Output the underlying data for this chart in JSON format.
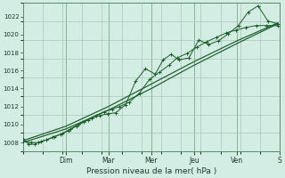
{
  "xlabel": "Pression niveau de la mer( hPa )",
  "background_color": "#d4ede4",
  "plot_bg_color": "#d4ede4",
  "grid_color": "#a8c8b8",
  "line_color": "#1a5c28",
  "ylim": [
    1007.0,
    1023.5
  ],
  "yticks": [
    1008,
    1010,
    1012,
    1014,
    1016,
    1018,
    1020,
    1022
  ],
  "xlim": [
    0.0,
    13.0
  ],
  "day_labels": [
    "Dim",
    "Mar",
    "Mer",
    "Jeu",
    "Ven",
    "S"
  ],
  "day_positions": [
    2.17,
    4.33,
    6.5,
    8.67,
    10.83,
    13.0
  ],
  "num_xcells": 13,
  "num_ycells": 8,
  "line1_x": [
    0.0,
    0.3,
    0.6,
    0.9,
    1.2,
    1.5,
    1.9,
    2.3,
    2.7,
    3.1,
    3.5,
    3.9,
    4.3,
    4.7,
    5.2,
    5.7,
    6.2,
    6.7,
    7.1,
    7.5,
    7.9,
    8.4,
    8.9,
    9.4,
    9.9,
    10.4,
    10.9,
    11.4,
    11.9,
    12.4,
    12.9
  ],
  "line1_y": [
    1008.4,
    1007.8,
    1007.8,
    1008.1,
    1008.3,
    1008.6,
    1008.9,
    1009.3,
    1009.8,
    1010.3,
    1010.7,
    1011.0,
    1011.2,
    1011.3,
    1012.2,
    1014.8,
    1016.2,
    1015.6,
    1017.2,
    1017.8,
    1017.2,
    1017.4,
    1019.4,
    1018.9,
    1019.3,
    1020.1,
    1021.0,
    1022.5,
    1023.2,
    1021.5,
    1021.2
  ],
  "line2_x": [
    0.0,
    0.4,
    0.8,
    1.2,
    1.6,
    2.0,
    2.4,
    2.8,
    3.3,
    3.7,
    4.1,
    4.5,
    4.9,
    5.4,
    5.9,
    6.4,
    6.9,
    7.4,
    7.8,
    8.3,
    8.8,
    9.3,
    9.8,
    10.3,
    10.8,
    11.3,
    11.8,
    12.3,
    12.9
  ],
  "line2_y": [
    1008.1,
    1008.0,
    1008.0,
    1008.3,
    1008.6,
    1009.0,
    1009.5,
    1010.0,
    1010.5,
    1011.0,
    1011.4,
    1011.7,
    1012.0,
    1012.5,
    1013.5,
    1015.0,
    1015.8,
    1016.6,
    1017.4,
    1017.9,
    1018.6,
    1019.2,
    1019.7,
    1020.2,
    1020.5,
    1020.8,
    1021.0,
    1021.0,
    1021.0
  ],
  "line3_x": [
    0.0,
    2.17,
    4.33,
    6.5,
    8.67,
    10.83,
    12.9
  ],
  "line3_y": [
    1008.0,
    1009.5,
    1011.6,
    1014.0,
    1016.6,
    1019.0,
    1021.2
  ],
  "line4_x": [
    0.0,
    2.17,
    4.33,
    6.5,
    8.67,
    10.83,
    12.9
  ],
  "line4_y": [
    1008.2,
    1009.8,
    1012.0,
    1014.5,
    1017.0,
    1019.3,
    1021.3
  ]
}
